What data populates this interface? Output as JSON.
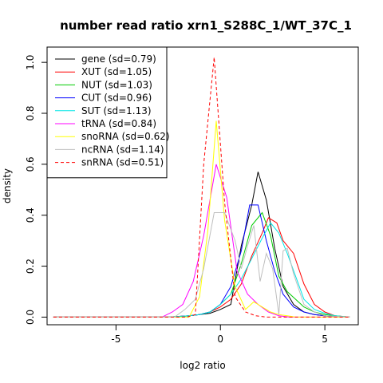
{
  "chart_data": {
    "type": "line",
    "title": "number read ratio xrn1_S288C_1/WT_37C_1",
    "xlabel": "log2 ratio",
    "ylabel": "density",
    "xlim": [
      -8.3,
      6.6
    ],
    "ylim": [
      -0.03,
      1.06
    ],
    "x_ticks": [
      -5,
      0,
      5
    ],
    "x_tick_labels": [
      "-5",
      "0",
      "5"
    ],
    "y_ticks": [
      0.0,
      0.2,
      0.4,
      0.6,
      0.8,
      1.0
    ],
    "y_tick_labels": [
      "0.0",
      "0.2",
      "0.4",
      "0.6",
      "0.8",
      "1.0"
    ],
    "grid": false,
    "legend_position": "top-left",
    "series": [
      {
        "name": "gene (sd=0.79)",
        "color": "#000000",
        "dash": false,
        "x": [
          -8,
          -2.5,
          -1.5,
          -1.0,
          -0.5,
          0.0,
          0.5,
          1.0,
          1.5,
          1.8,
          2.2,
          2.6,
          3.0,
          3.5,
          4.0,
          4.5,
          5.0,
          5.5,
          6.2
        ],
        "y": [
          0.0,
          0.0,
          0.005,
          0.01,
          0.015,
          0.03,
          0.05,
          0.28,
          0.44,
          0.57,
          0.46,
          0.27,
          0.12,
          0.05,
          0.02,
          0.01,
          0.005,
          0.0,
          0.0
        ]
      },
      {
        "name": "XUT (sd=1.05)",
        "color": "#ff0000",
        "dash": false,
        "x": [
          -8,
          -2.5,
          -1.5,
          -1.0,
          -0.5,
          0.0,
          0.5,
          1.0,
          1.5,
          2.0,
          2.3,
          2.7,
          3.0,
          3.5,
          4.0,
          4.5,
          5.0,
          5.5,
          6.2
        ],
        "y": [
          0.0,
          0.0,
          0.005,
          0.01,
          0.02,
          0.04,
          0.07,
          0.13,
          0.24,
          0.33,
          0.39,
          0.37,
          0.3,
          0.25,
          0.13,
          0.05,
          0.02,
          0.005,
          0.0
        ]
      },
      {
        "name": "NUT (sd=1.03)",
        "color": "#00cc00",
        "dash": false,
        "x": [
          -8,
          -2.0,
          -1.5,
          -1.0,
          -0.5,
          0.0,
          0.5,
          1.0,
          1.5,
          2.0,
          2.4,
          2.8,
          3.2,
          3.6,
          4.0,
          4.5,
          5.0,
          5.5,
          6.2
        ],
        "y": [
          0.0,
          0.0,
          0.005,
          0.01,
          0.02,
          0.05,
          0.09,
          0.21,
          0.36,
          0.41,
          0.32,
          0.16,
          0.1,
          0.07,
          0.04,
          0.02,
          0.01,
          0.005,
          0.0
        ]
      },
      {
        "name": "CUT (sd=0.96)",
        "color": "#0000ff",
        "dash": false,
        "x": [
          -8,
          -2.5,
          -1.5,
          -1.0,
          -0.5,
          0.0,
          0.5,
          1.0,
          1.4,
          1.8,
          2.2,
          2.6,
          3.0,
          3.5,
          4.0,
          4.5,
          5.0,
          5.5,
          6.2
        ],
        "y": [
          0.0,
          0.0,
          0.005,
          0.01,
          0.02,
          0.05,
          0.12,
          0.26,
          0.44,
          0.44,
          0.3,
          0.18,
          0.09,
          0.04,
          0.02,
          0.01,
          0.005,
          0.0,
          0.0
        ]
      },
      {
        "name": "SUT (sd=1.13)",
        "color": "#00e5e5",
        "dash": false,
        "x": [
          -8,
          -2.5,
          -1.5,
          -1.0,
          -0.5,
          0.0,
          0.5,
          1.0,
          1.5,
          2.0,
          2.4,
          2.8,
          3.2,
          3.6,
          4.0,
          4.5,
          5.0,
          5.5,
          6.2
        ],
        "y": [
          0.0,
          0.0,
          0.005,
          0.01,
          0.02,
          0.05,
          0.09,
          0.15,
          0.23,
          0.31,
          0.37,
          0.33,
          0.25,
          0.16,
          0.07,
          0.03,
          0.015,
          0.005,
          0.0
        ]
      },
      {
        "name": "tRNA (sd=0.84)",
        "color": "#ff00ff",
        "dash": false,
        "x": [
          -8,
          -2.8,
          -2.3,
          -1.8,
          -1.3,
          -0.8,
          -0.2,
          0.3,
          0.8,
          1.3,
          1.8,
          2.3,
          2.8,
          3.3,
          6.2
        ],
        "y": [
          0.0,
          0.0,
          0.02,
          0.05,
          0.14,
          0.32,
          0.6,
          0.47,
          0.18,
          0.09,
          0.05,
          0.02,
          0.005,
          0.0,
          0.0
        ]
      },
      {
        "name": "snoRNA (sd=0.62)",
        "color": "#ffff00",
        "dash": false,
        "x": [
          -8,
          -1.5,
          -1.0,
          -0.6,
          -0.2,
          0.2,
          0.7,
          1.2,
          1.6,
          2.0,
          2.4,
          2.8,
          3.2,
          3.6,
          6.2
        ],
        "y": [
          0.0,
          0.0,
          0.08,
          0.34,
          0.77,
          0.38,
          0.12,
          0.03,
          0.06,
          0.04,
          0.02,
          0.01,
          0.005,
          0.0,
          0.0
        ]
      },
      {
        "name": "ncRNA (sd=1.14)",
        "color": "#bebebe",
        "dash": false,
        "x": [
          -8,
          -2.2,
          -1.7,
          -1.2,
          -0.8,
          -0.3,
          0.2,
          0.7,
          1.0,
          1.3,
          1.6,
          1.9,
          2.2,
          2.5,
          2.8,
          3.0,
          3.2,
          3.5,
          4.0,
          4.5,
          5.0,
          6.2
        ],
        "y": [
          0.0,
          0.0,
          0.03,
          0.07,
          0.19,
          0.41,
          0.41,
          0.3,
          0.19,
          0.28,
          0.36,
          0.14,
          0.25,
          0.19,
          0.01,
          0.26,
          0.27,
          0.17,
          0.05,
          0.02,
          0.005,
          0.0
        ]
      },
      {
        "name": "snRNA (sd=0.51)",
        "color": "#ff0000",
        "dash": true,
        "x": [
          -8,
          -1.6,
          -1.2,
          -0.8,
          -0.3,
          0.2,
          0.7,
          1.2,
          1.7,
          2.2,
          6.2
        ],
        "y": [
          0.0,
          0.0,
          0.01,
          0.6,
          1.02,
          0.45,
          0.08,
          0.02,
          0.005,
          0.0,
          0.0
        ]
      }
    ]
  }
}
